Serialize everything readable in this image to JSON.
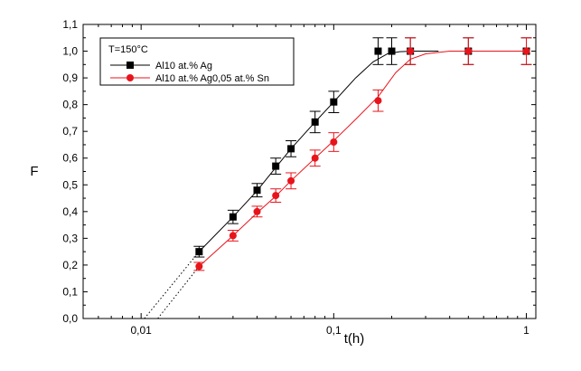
{
  "chart_data": {
    "type": "scatter",
    "xscale": "log",
    "xlabel": "t(h)",
    "ylabel": "F",
    "xlim": [
      0.005,
      1.12
    ],
    "ylim": [
      0.0,
      1.1
    ],
    "x_ticks": [
      0.01,
      0.1,
      1
    ],
    "x_tick_labels": [
      "0,01",
      "0,1",
      "1"
    ],
    "y_ticks": [
      0.0,
      0.1,
      0.2,
      0.3,
      0.4,
      0.5,
      0.6,
      0.7,
      0.8,
      0.9,
      1.0,
      1.1
    ],
    "y_tick_labels": [
      "0,0",
      "0,1",
      "0,2",
      "0,3",
      "0,4",
      "0,5",
      "0,6",
      "0,7",
      "0,8",
      "0,9",
      "1,0",
      "1,1"
    ],
    "grid": false,
    "legend_title": "T=150°C",
    "legend_position": "top-left",
    "series": [
      {
        "name": "Al10 at.% Ag",
        "color": "#000000",
        "marker": "square",
        "x": [
          0.02,
          0.03,
          0.04,
          0.05,
          0.06,
          0.08,
          0.1,
          0.17,
          0.2,
          0.25,
          0.5,
          1.0
        ],
        "y": [
          0.25,
          0.38,
          0.48,
          0.57,
          0.635,
          0.735,
          0.81,
          1.0,
          1.0,
          1.0,
          1.0,
          1.0
        ],
        "err": [
          0.02,
          0.025,
          0.025,
          0.03,
          0.03,
          0.04,
          0.04,
          0.05,
          0.05,
          0.05,
          0.05,
          0.05
        ],
        "fit_x": [
          0.02,
          0.03,
          0.04,
          0.05,
          0.06,
          0.08,
          0.1,
          0.13,
          0.16,
          0.19,
          0.22,
          0.26,
          0.35
        ],
        "fit_y": [
          0.25,
          0.38,
          0.478,
          0.565,
          0.635,
          0.735,
          0.81,
          0.9,
          0.96,
          0.99,
          0.998,
          1.0,
          1.0
        ],
        "extrap_x": [
          0.0104,
          0.02
        ],
        "extrap_y": [
          0.0,
          0.25
        ]
      },
      {
        "name": "Al10 at.% Ag0,05 at.% Sn",
        "color": "#e8141b",
        "marker": "circle",
        "x": [
          0.02,
          0.03,
          0.04,
          0.05,
          0.06,
          0.08,
          0.1,
          0.17,
          0.25,
          0.5,
          1.0
        ],
        "y": [
          0.195,
          0.31,
          0.4,
          0.46,
          0.515,
          0.6,
          0.66,
          0.815,
          1.0,
          1.0,
          1.0
        ],
        "err": [
          0.015,
          0.02,
          0.02,
          0.025,
          0.03,
          0.03,
          0.035,
          0.04,
          0.05,
          0.05,
          0.05
        ],
        "fit_x": [
          0.02,
          0.03,
          0.04,
          0.05,
          0.06,
          0.08,
          0.1,
          0.13,
          0.17,
          0.21,
          0.25,
          0.3,
          0.4,
          0.5,
          1.0
        ],
        "fit_y": [
          0.195,
          0.31,
          0.395,
          0.458,
          0.515,
          0.6,
          0.665,
          0.745,
          0.83,
          0.92,
          0.97,
          0.99,
          1.0,
          1.0,
          1.0
        ],
        "extrap_x": [
          0.0122,
          0.02
        ],
        "extrap_y": [
          0.0,
          0.195
        ]
      }
    ]
  }
}
